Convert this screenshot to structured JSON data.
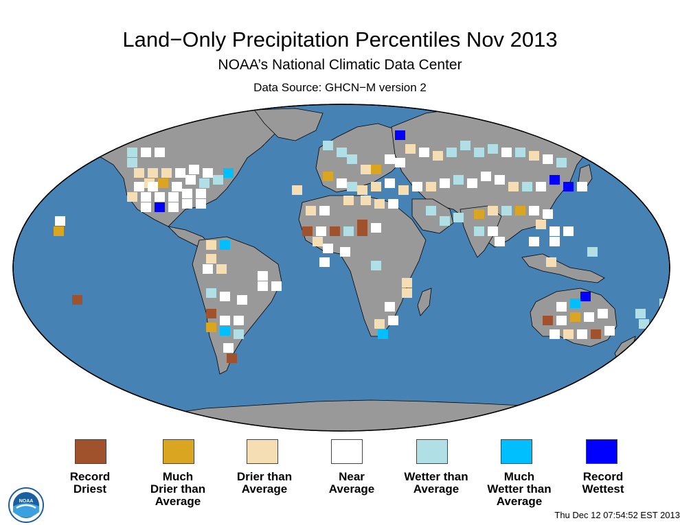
{
  "header": {
    "title": "Land−Only Precipitation Percentiles Nov 2013",
    "subtitle": "NOAA’s National Climatic Data Center",
    "source": "Data Source: GHCN−M version 2"
  },
  "map": {
    "ocean_color": "#4682b4",
    "land_color": "#999999",
    "projection": "Robinson"
  },
  "legend": [
    {
      "label": "Record\nDriest",
      "color": "#a0522d"
    },
    {
      "label": "Much\nDrier than\nAverage",
      "color": "#daa520"
    },
    {
      "label": "Drier than\nAverage",
      "color": "#f5deb3"
    },
    {
      "label": "Near\nAverage",
      "color": "#ffffff"
    },
    {
      "label": "Wetter than\nAverage",
      "color": "#b0e0e6"
    },
    {
      "label": "Much\nWetter than\nAverage",
      "color": "#00bfff"
    },
    {
      "label": "Record\nWettest",
      "color": "#0000ff"
    }
  ],
  "footer": {
    "timestamp": "Thu Dec 12 07:54:52 EST 2013",
    "logo_text": "NOAA"
  }
}
